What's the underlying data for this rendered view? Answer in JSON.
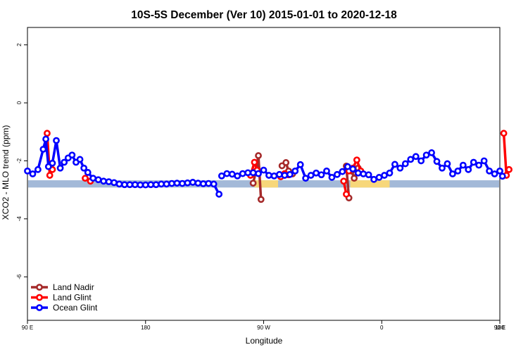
{
  "chart_data": {
    "type": "line",
    "title": "10S-5S December (Ver 10)   2015-01-01 to 2020-12-18",
    "xlabel": "Longitude",
    "ylabel": "XCO2 - MLO trend (ppm)",
    "xlim": [
      90,
      450
    ],
    "ylim": [
      -7.5,
      2.6
    ],
    "x_ticks": [
      {
        "value": 90,
        "label": "90 E"
      },
      {
        "value": 180,
        "label": "180"
      },
      {
        "value": 270,
        "label": "90 W"
      },
      {
        "value": 360,
        "label": "0"
      },
      {
        "value": 450,
        "label": "90 E"
      },
      {
        "value": 540,
        "label": "180"
      }
    ],
    "y_ticks": [
      {
        "value": 2,
        "label": "2"
      },
      {
        "value": 0,
        "label": "0"
      },
      {
        "value": -2,
        "label": "-2"
      },
      {
        "value": -4,
        "label": "-4"
      },
      {
        "value": -6,
        "label": "-6"
      }
    ],
    "grid": false,
    "legend_position": "bottom-left",
    "land_band": {
      "y_range": [
        -2.92,
        -2.67
      ],
      "ocean_color": "#a3b9d8",
      "land_color": "#f7d77a",
      "land_segments": [
        [
          263,
          281
        ],
        [
          336,
          366
        ]
      ]
    },
    "series": [
      {
        "name": "Land Nadir",
        "color": "#a52a2a",
        "segments": [
          [
            [
              262,
              -2.77
            ],
            [
              264,
              -2.38
            ],
            [
              266,
              -1.82
            ],
            [
              268,
              -3.33
            ]
          ],
          [
            [
              284,
              -2.17
            ],
            [
              287,
              -2.06
            ],
            [
              289,
              -2.35
            ],
            [
              292,
              -2.45
            ]
          ],
          [
            [
              333,
              -2.18
            ],
            [
              335,
              -3.28
            ]
          ],
          [
            [
              337,
              -2.35
            ],
            [
              339,
              -2.6
            ],
            [
              342,
              -2.25
            ]
          ]
        ]
      },
      {
        "name": "Land Glint",
        "color": "#ff0000",
        "segments": [
          [
            [
              105,
              -1.05
            ],
            [
              107,
              -2.5
            ],
            [
              109,
              -2.3
            ]
          ],
          [
            [
              134,
              -2.6
            ],
            [
              138,
              -2.7
            ]
          ],
          [
            [
              260,
              -2.5
            ],
            [
              263,
              -2.05
            ],
            [
              265,
              -2.32
            ]
          ],
          [
            [
              283,
              -2.55
            ],
            [
              286,
              -2.44
            ],
            [
              289,
              -2.48
            ]
          ],
          [
            [
              331,
              -2.7
            ],
            [
              333,
              -3.15
            ]
          ],
          [
            [
              335,
              -2.35
            ],
            [
              338,
              -2.25
            ],
            [
              341,
              -1.97
            ],
            [
              344,
              -2.35
            ]
          ],
          [
            [
              453,
              -1.05
            ],
            [
              455,
              -2.5
            ],
            [
              457,
              -2.3
            ]
          ],
          [
            [
              479,
              -2.6
            ],
            [
              483,
              -2.7
            ]
          ]
        ]
      },
      {
        "name": "Ocean Glint",
        "color": "#0000ff",
        "segments": [
          [
            [
              90,
              -2.35
            ],
            [
              94,
              -2.45
            ],
            [
              98,
              -2.3
            ],
            [
              102,
              -1.6
            ],
            [
              104,
              -1.25
            ],
            [
              106,
              -2.2
            ],
            [
              109,
              -2.08
            ],
            [
              112,
              -1.3
            ],
            [
              115,
              -2.25
            ],
            [
              118,
              -2.05
            ],
            [
              121,
              -1.9
            ],
            [
              124,
              -1.8
            ],
            [
              127,
              -2.05
            ],
            [
              130,
              -1.95
            ],
            [
              133,
              -2.25
            ],
            [
              136,
              -2.4
            ],
            [
              140,
              -2.6
            ],
            [
              144,
              -2.65
            ],
            [
              148,
              -2.7
            ],
            [
              152,
              -2.72
            ],
            [
              156,
              -2.75
            ],
            [
              160,
              -2.8
            ],
            [
              164,
              -2.82
            ],
            [
              168,
              -2.82
            ],
            [
              172,
              -2.82
            ],
            [
              176,
              -2.83
            ],
            [
              180,
              -2.83
            ],
            [
              184,
              -2.82
            ],
            [
              188,
              -2.82
            ],
            [
              192,
              -2.8
            ],
            [
              196,
              -2.8
            ],
            [
              200,
              -2.78
            ],
            [
              204,
              -2.77
            ],
            [
              208,
              -2.78
            ],
            [
              212,
              -2.76
            ],
            [
              216,
              -2.74
            ],
            [
              220,
              -2.77
            ],
            [
              224,
              -2.79
            ],
            [
              228,
              -2.78
            ],
            [
              232,
              -2.8
            ],
            [
              236,
              -3.15
            ]
          ],
          [
            [
              238,
              -2.52
            ],
            [
              242,
              -2.44
            ],
            [
              246,
              -2.46
            ],
            [
              250,
              -2.52
            ],
            [
              254,
              -2.44
            ],
            [
              258,
              -2.41
            ],
            [
              262,
              -2.41
            ],
            [
              266,
              -2.44
            ],
            [
              270,
              -2.32
            ],
            [
              274,
              -2.5
            ]
          ],
          [
            [
              278,
              -2.52
            ],
            [
              282,
              -2.47
            ],
            [
              286,
              -2.5
            ],
            [
              290,
              -2.47
            ],
            [
              294,
              -2.35
            ],
            [
              298,
              -2.13
            ],
            [
              302,
              -2.6
            ],
            [
              306,
              -2.5
            ],
            [
              310,
              -2.42
            ],
            [
              314,
              -2.48
            ],
            [
              318,
              -2.35
            ],
            [
              322,
              -2.57
            ],
            [
              326,
              -2.47
            ],
            [
              330,
              -2.37
            ],
            [
              334,
              -2.2
            ],
            [
              338,
              -2.28
            ],
            [
              342,
              -2.42
            ],
            [
              346,
              -2.45
            ],
            [
              350,
              -2.48
            ],
            [
              354,
              -2.64
            ],
            [
              358,
              -2.57
            ]
          ],
          [
            [
              362,
              -2.5
            ],
            [
              366,
              -2.42
            ],
            [
              370,
              -2.12
            ],
            [
              374,
              -2.25
            ],
            [
              378,
              -2.1
            ],
            [
              382,
              -1.95
            ],
            [
              386,
              -1.85
            ],
            [
              390,
              -2.0
            ],
            [
              394,
              -1.8
            ],
            [
              398,
              -1.72
            ],
            [
              402,
              -2.02
            ],
            [
              406,
              -2.25
            ],
            [
              410,
              -2.1
            ],
            [
              414,
              -2.45
            ],
            [
              418,
              -2.35
            ],
            [
              422,
              -2.15
            ],
            [
              426,
              -2.3
            ],
            [
              430,
              -2.05
            ],
            [
              434,
              -2.15
            ],
            [
              438,
              -2.0
            ],
            [
              442,
              -2.35
            ],
            [
              446,
              -2.45
            ],
            [
              450,
              -2.35
            ],
            [
              452,
              -2.53
            ]
          ]
        ]
      }
    ]
  }
}
